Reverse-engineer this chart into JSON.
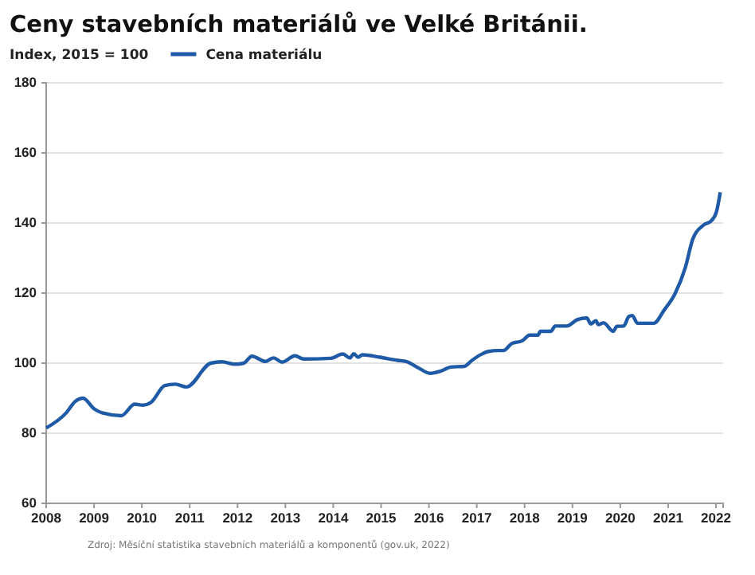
{
  "chart_data": {
    "type": "line",
    "title": "Ceny stavebních materiálů ve Velké Británii.",
    "ylabel": "Index, 2015 = 100",
    "annotations": [
      "Zdroj: Měsíční statistika stavebních materiálů a komponentů (gov.uk, 2022)"
    ],
    "x": [
      2008.0,
      2008.43,
      2008.6,
      2008.77,
      2009.0,
      2009.17,
      2009.57,
      2009.85,
      2010.02,
      2010.19,
      2010.48,
      2010.7,
      2010.93,
      2011.44,
      2011.67,
      2011.95,
      2012.13,
      2012.3,
      2012.58,
      2012.75,
      2012.93,
      2013.2,
      2013.38,
      2013.95,
      2014.2,
      2014.35,
      2014.43,
      2014.52,
      2014.61,
      2014.97,
      2015.35,
      2015.52,
      2015.8,
      2016.02,
      2016.24,
      2016.46,
      2016.74,
      2016.9,
      2017.12,
      2017.23,
      2017.45,
      2017.56,
      2017.73,
      2017.95,
      2018.11,
      2018.28,
      2018.33,
      2018.55,
      2018.64,
      2018.88,
      2019.1,
      2019.3,
      2019.38,
      2019.49,
      2019.54,
      2019.65,
      2019.85,
      2019.93,
      2020.07,
      2020.18,
      2020.25,
      2020.36,
      2020.7,
      2020.92,
      2021.14,
      2021.36,
      2021.52,
      2021.74,
      2021.9,
      2022.01,
      2022.09
    ],
    "series": [
      {
        "name": "Cena materiálu",
        "color": "#1f5aa6",
        "values": [
          81.5,
          86,
          89,
          90,
          87,
          85.8,
          85,
          88.3,
          88,
          88.8,
          93.6,
          94,
          93.2,
          100,
          100.4,
          99.7,
          100,
          102,
          100.5,
          101.5,
          100.3,
          102.1,
          101.2,
          101.4,
          102.6,
          101.5,
          102.7,
          101.7,
          102.4,
          101.7,
          100.8,
          100.5,
          98.5,
          97.1,
          97.7,
          98.9,
          99.1,
          100.8,
          102.7,
          103.3,
          103.6,
          103.6,
          105.6,
          106.4,
          108,
          108,
          109.1,
          109.1,
          110.6,
          110.6,
          112.4,
          112.9,
          111.2,
          112.1,
          111,
          111.5,
          109.1,
          110.5,
          110.6,
          113.3,
          113.6,
          111.4,
          111.4,
          115.2,
          119.7,
          127.3,
          135.6,
          139.4,
          140.6,
          143.2,
          148.8
        ]
      }
    ],
    "xlim": [
      2008,
      2022.15
    ],
    "xticks": [
      2008,
      2009,
      2010,
      2011,
      2012,
      2013,
      2014,
      2015,
      2016,
      2017,
      2018,
      2019,
      2020,
      2021,
      2022
    ],
    "ylim": [
      60,
      180
    ],
    "yticks": [
      60,
      80,
      100,
      120,
      140,
      160,
      180
    ],
    "grid": "y",
    "legend": "top left",
    "marker": "none",
    "line_style": "solid"
  }
}
